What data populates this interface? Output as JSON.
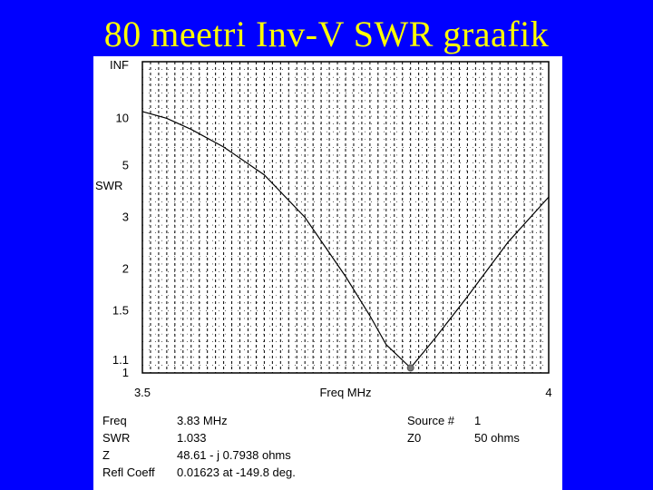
{
  "slide": {
    "title": "80 meetri Inv-V SWR graafik"
  },
  "chart_data": {
    "type": "line",
    "xlabel": "Freq MHz",
    "ylabel": "SWR",
    "xlim": [
      3.5,
      4.0
    ],
    "x_tick_labels": [
      "3.5",
      "4"
    ],
    "y_tick_labels": [
      "INF",
      "10",
      "5",
      "3",
      "2",
      "1.5",
      "1.1",
      "1"
    ],
    "y_scale": "reflection-coefficient (SWR)",
    "grid": true,
    "series": [
      {
        "x": [
          3.5,
          3.53,
          3.56,
          3.6,
          3.65,
          3.7,
          3.75,
          3.78,
          3.8,
          3.83,
          3.86,
          3.9,
          3.95,
          4.0
        ],
        "values": [
          11.5,
          10.0,
          8.2,
          6.3,
          4.5,
          3.0,
          1.9,
          1.45,
          1.2,
          1.033,
          1.25,
          1.65,
          2.45,
          3.6
        ]
      }
    ],
    "marker": {
      "x": 3.83,
      "y": 1.033
    }
  },
  "readout": {
    "freq_label": "Freq",
    "freq_value": "3.83 MHz",
    "swr_label": "SWR",
    "swr_value": "1.033",
    "z_label": "Z",
    "z_value": "48.61 - j 0.7938 ohms",
    "refl_label": "Refl Coeff",
    "refl_value": "0.01623 at -149.8 deg.",
    "source_label": "Source #",
    "source_value": "1",
    "z0_label": "Z0",
    "z0_value": "50 ohms"
  }
}
